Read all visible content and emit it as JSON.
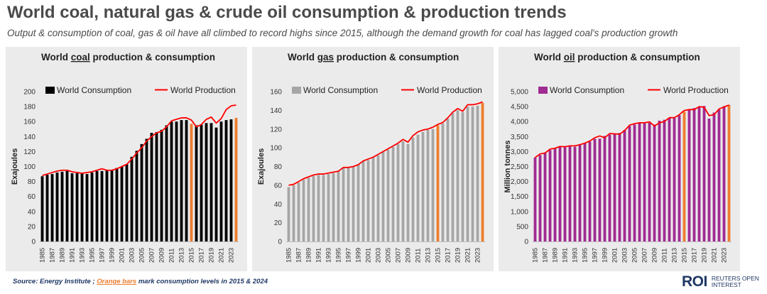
{
  "title": "World coal, natural gas & crude oil consumption & production trends",
  "subtitle": "Output & consumption of coal, gas & oil have all climbed to record highs since 2015, although the demand growth for coal has lagged coal's production growth",
  "footer": {
    "source_prefix": "Source:  Energy Institute ; ",
    "source_highlight": "Orange bars",
    "source_suffix": " mark consumption levels in 2015 & 2024"
  },
  "logo": {
    "mark": "ROI",
    "line1": "REUTERS OPEN",
    "line2": "INTEREST"
  },
  "colors": {
    "background": "#ffffff",
    "panel": "#ebebeb",
    "coal_bar": "#000000",
    "gas_bar": "#a6a6a6",
    "oil_bar": "#a02b93",
    "highlight_bar": "#ed7d31",
    "production_line": "#ff0000",
    "text": "#4a4a4a"
  },
  "chart_data": [
    {
      "id": "coal",
      "type": "bar",
      "title_prefix": "World ",
      "title_word": "coal",
      "title_suffix": " production & consumption",
      "ylabel": "Exajoules",
      "ylim": [
        0,
        200
      ],
      "yticks": [
        0,
        20,
        40,
        60,
        80,
        100,
        120,
        140,
        160,
        180,
        200
      ],
      "ytick_labels": [
        "0",
        "20",
        "40",
        "60",
        "80",
        "100",
        "120",
        "140",
        "160",
        "180",
        "200"
      ],
      "bar_color": "#000000",
      "legend": {
        "bar_label": "World Consumption",
        "line_label": "World Production"
      },
      "years": [
        1985,
        1986,
        1987,
        1988,
        1989,
        1990,
        1991,
        1992,
        1993,
        1994,
        1995,
        1996,
        1997,
        1998,
        1999,
        2000,
        2001,
        2002,
        2003,
        2004,
        2005,
        2006,
        2007,
        2008,
        2009,
        2010,
        2011,
        2012,
        2013,
        2014,
        2015,
        2016,
        2017,
        2018,
        2019,
        2020,
        2021,
        2022,
        2023,
        2024
      ],
      "xtick_labels": [
        "1985",
        "1987",
        "1989",
        "1991",
        "1993",
        "1995",
        "1997",
        "1999",
        "2001",
        "2003",
        "2005",
        "2007",
        "2009",
        "2011",
        "2013",
        "2015",
        "2017",
        "2019",
        "2021",
        "2023"
      ],
      "highlight_years": [
        2015,
        2024
      ],
      "series": [
        {
          "name": "World Consumption",
          "type": "bar",
          "values": [
            87,
            89,
            90,
            92,
            93,
            94,
            91,
            91,
            91,
            90,
            92,
            94,
            94,
            95,
            95,
            98,
            100,
            103,
            113,
            121,
            130,
            137,
            145,
            146,
            149,
            155,
            160,
            160,
            162,
            162,
            157,
            155,
            156,
            158,
            158,
            152,
            160,
            162,
            163,
            165
          ]
        },
        {
          "name": "World Production",
          "type": "line",
          "values": [
            88,
            90,
            92,
            94,
            95,
            95,
            93,
            92,
            91,
            92,
            93,
            95,
            97,
            95,
            95,
            97,
            100,
            103,
            110,
            118,
            125,
            134,
            140,
            145,
            147,
            153,
            161,
            163,
            165,
            165,
            162,
            153,
            156,
            163,
            166,
            158,
            164,
            176,
            181,
            182
          ]
        }
      ]
    },
    {
      "id": "gas",
      "type": "bar",
      "title_prefix": "World ",
      "title_word": "gas",
      "title_suffix": " production & consumption",
      "ylabel": "Exajoules",
      "ylim": [
        0,
        160
      ],
      "yticks": [
        0,
        20,
        40,
        60,
        80,
        100,
        120,
        140,
        160
      ],
      "ytick_labels": [
        "0",
        "20",
        "40",
        "60",
        "80",
        "100",
        "120",
        "140",
        "160"
      ],
      "bar_color": "#a6a6a6",
      "legend": {
        "bar_label": "World Consumption",
        "line_label": "World Production"
      },
      "years": [
        1985,
        1986,
        1987,
        1988,
        1989,
        1990,
        1991,
        1992,
        1993,
        1994,
        1995,
        1996,
        1997,
        1998,
        1999,
        2000,
        2001,
        2002,
        2003,
        2004,
        2005,
        2006,
        2007,
        2008,
        2009,
        2010,
        2011,
        2012,
        2013,
        2014,
        2015,
        2016,
        2017,
        2018,
        2019,
        2020,
        2021,
        2022,
        2023,
        2024
      ],
      "xtick_labels": [
        "1985",
        "1987",
        "1989",
        "1991",
        "1993",
        "1995",
        "1997",
        "1999",
        "2001",
        "2003",
        "2005",
        "2007",
        "2009",
        "2011",
        "2013",
        "2015",
        "2017",
        "2019",
        "2021",
        "2023"
      ],
      "highlight_years": [
        2015,
        2024
      ],
      "series": [
        {
          "name": "World Consumption",
          "type": "bar",
          "values": [
            58,
            60,
            63,
            66,
            68,
            70,
            71,
            71,
            72,
            73,
            75,
            79,
            79,
            80,
            82,
            86,
            87,
            90,
            92,
            96,
            98,
            101,
            104,
            107,
            104,
            111,
            114,
            117,
            119,
            120,
            124,
            126,
            131,
            137,
            140,
            138,
            144,
            144,
            145,
            148
          ]
        },
        {
          "name": "World Production",
          "type": "line",
          "values": [
            60,
            61,
            64,
            67,
            69,
            71,
            72,
            72,
            73,
            74,
            75,
            79,
            79,
            80,
            82,
            86,
            88,
            90,
            93,
            96,
            99,
            102,
            105,
            109,
            106,
            113,
            117,
            119,
            120,
            122,
            125,
            127,
            132,
            138,
            142,
            139,
            146,
            146,
            147,
            149
          ]
        }
      ]
    },
    {
      "id": "oil",
      "type": "bar",
      "title_prefix": "World ",
      "title_word": "oil",
      "title_suffix": " production & consumption",
      "ylabel": "Million tonnes",
      "ylim": [
        0,
        5000
      ],
      "yticks": [
        0,
        500,
        1000,
        1500,
        2000,
        2500,
        3000,
        3500,
        4000,
        4500,
        5000
      ],
      "ytick_labels": [
        "0",
        "500",
        "1,000",
        "1,500",
        "2,000",
        "2,500",
        "3,000",
        "3,500",
        "4,000",
        "4,500",
        "5,000"
      ],
      "bar_color": "#a02b93",
      "legend": {
        "bar_label": "World Consumption",
        "line_label": "World Production"
      },
      "years": [
        1985,
        1986,
        1987,
        1988,
        1989,
        1990,
        1991,
        1992,
        1993,
        1994,
        1995,
        1996,
        1997,
        1998,
        1999,
        2000,
        2001,
        2002,
        2003,
        2004,
        2005,
        2006,
        2007,
        2008,
        2009,
        2010,
        2011,
        2012,
        2013,
        2014,
        2015,
        2016,
        2017,
        2018,
        2019,
        2020,
        2021,
        2022,
        2023,
        2024
      ],
      "xtick_labels": [
        "1985",
        "1987",
        "1989",
        "1991",
        "1993",
        "1995",
        "1997",
        "1999",
        "2001",
        "2003",
        "2005",
        "2007",
        "2009",
        "2011",
        "2013",
        "2015",
        "2017",
        "2019",
        "2021",
        "2023"
      ],
      "highlight_years": [
        2015,
        2024
      ],
      "series": [
        {
          "name": "World Consumption",
          "type": "bar",
          "values": [
            2800,
            2880,
            2950,
            3050,
            3100,
            3150,
            3150,
            3180,
            3160,
            3220,
            3270,
            3330,
            3420,
            3430,
            3520,
            3560,
            3580,
            3620,
            3720,
            3850,
            3900,
            3950,
            3970,
            3960,
            3900,
            4030,
            4060,
            4110,
            4150,
            4210,
            4330,
            4380,
            4450,
            4500,
            4520,
            4100,
            4300,
            4400,
            4510,
            4560
          ]
        },
        {
          "name": "World Production",
          "type": "line",
          "values": [
            2800,
            2920,
            2950,
            3080,
            3110,
            3170,
            3160,
            3190,
            3190,
            3230,
            3280,
            3350,
            3460,
            3520,
            3460,
            3600,
            3590,
            3580,
            3700,
            3880,
            3930,
            3960,
            3960,
            3990,
            3850,
            3960,
            4000,
            4130,
            4130,
            4230,
            4370,
            4400,
            4400,
            4500,
            4480,
            4200,
            4230,
            4420,
            4490,
            4550
          ]
        }
      ]
    }
  ]
}
